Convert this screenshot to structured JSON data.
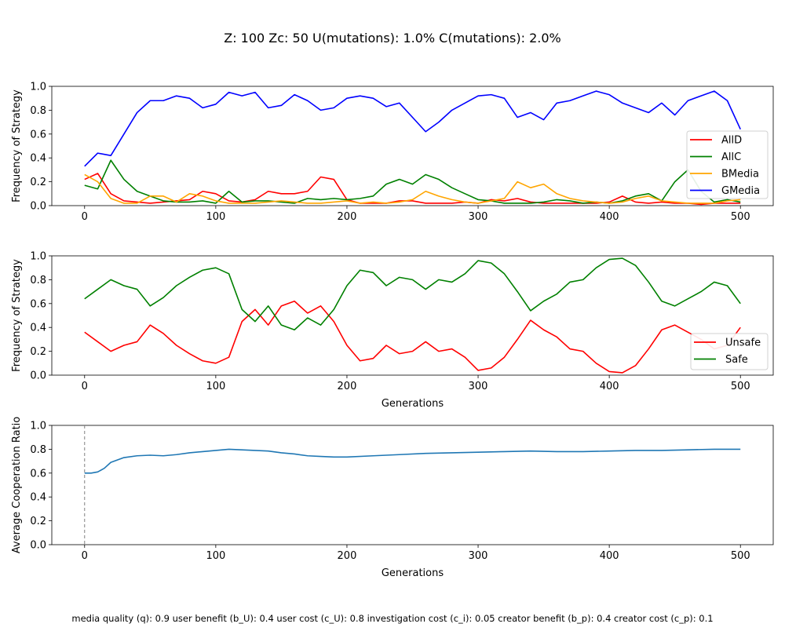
{
  "title": "Z: 100  Zc: 50  U(mutations): 1.0%  C(mutations): 2.0%",
  "footer": "media quality (q): 0.9  user benefit (b_U): 0.4  user cost (c_U): 0.8  investigation cost (c_i): 0.05  creator benefit (b_p): 0.4  creator cost (c_p): 0.1",
  "chart_data": [
    {
      "type": "line",
      "ylabel": "Frequency of Strategy",
      "xlabel": "",
      "xlim": [
        -25,
        525
      ],
      "ylim": [
        0,
        1
      ],
      "x_ticks": [
        0,
        100,
        200,
        300,
        400,
        500
      ],
      "y_ticks": [
        0.0,
        0.2,
        0.4,
        0.6,
        0.8,
        1.0
      ],
      "legend_position": "center-right",
      "x": [
        0,
        10,
        20,
        30,
        40,
        50,
        60,
        70,
        80,
        90,
        100,
        110,
        120,
        130,
        140,
        150,
        160,
        170,
        180,
        190,
        200,
        210,
        220,
        230,
        240,
        250,
        260,
        270,
        280,
        290,
        300,
        310,
        320,
        330,
        340,
        350,
        360,
        370,
        380,
        390,
        400,
        410,
        420,
        430,
        440,
        450,
        460,
        470,
        480,
        490,
        500
      ],
      "series": [
        {
          "name": "AllD",
          "color": "#ff0000",
          "values": [
            0.22,
            0.27,
            0.1,
            0.04,
            0.03,
            0.02,
            0.03,
            0.04,
            0.05,
            0.12,
            0.1,
            0.04,
            0.03,
            0.05,
            0.12,
            0.1,
            0.1,
            0.12,
            0.24,
            0.22,
            0.05,
            0.02,
            0.02,
            0.02,
            0.04,
            0.04,
            0.02,
            0.02,
            0.02,
            0.03,
            0.02,
            0.05,
            0.04,
            0.06,
            0.03,
            0.02,
            0.02,
            0.02,
            0.02,
            0.02,
            0.03,
            0.08,
            0.03,
            0.02,
            0.03,
            0.02,
            0.02,
            0.01,
            0.02,
            0.02,
            0.02
          ]
        },
        {
          "name": "AllC",
          "color": "#008000",
          "values": [
            0.17,
            0.14,
            0.38,
            0.22,
            0.12,
            0.08,
            0.04,
            0.03,
            0.03,
            0.04,
            0.02,
            0.12,
            0.03,
            0.04,
            0.04,
            0.03,
            0.02,
            0.06,
            0.05,
            0.06,
            0.05,
            0.06,
            0.08,
            0.18,
            0.22,
            0.18,
            0.26,
            0.22,
            0.15,
            0.1,
            0.05,
            0.04,
            0.02,
            0.02,
            0.02,
            0.03,
            0.05,
            0.04,
            0.02,
            0.03,
            0.02,
            0.04,
            0.08,
            0.1,
            0.04,
            0.2,
            0.3,
            0.12,
            0.03,
            0.05,
            0.03
          ]
        },
        {
          "name": "BMedia",
          "color": "#ffa500",
          "values": [
            0.26,
            0.2,
            0.06,
            0.02,
            0.02,
            0.08,
            0.08,
            0.03,
            0.1,
            0.08,
            0.04,
            0.02,
            0.02,
            0.02,
            0.03,
            0.04,
            0.03,
            0.02,
            0.02,
            0.03,
            0.04,
            0.02,
            0.03,
            0.02,
            0.03,
            0.05,
            0.12,
            0.08,
            0.05,
            0.03,
            0.02,
            0.04,
            0.06,
            0.2,
            0.15,
            0.18,
            0.1,
            0.06,
            0.04,
            0.03,
            0.02,
            0.03,
            0.06,
            0.08,
            0.04,
            0.03,
            0.02,
            0.02,
            0.02,
            0.04,
            0.05
          ]
        },
        {
          "name": "GMedia",
          "color": "#0000ff",
          "values": [
            0.33,
            0.44,
            0.42,
            0.6,
            0.78,
            0.88,
            0.88,
            0.92,
            0.9,
            0.82,
            0.85,
            0.95,
            0.92,
            0.95,
            0.82,
            0.84,
            0.93,
            0.88,
            0.8,
            0.82,
            0.9,
            0.92,
            0.9,
            0.83,
            0.86,
            0.74,
            0.62,
            0.7,
            0.8,
            0.86,
            0.92,
            0.93,
            0.9,
            0.74,
            0.78,
            0.72,
            0.86,
            0.88,
            0.92,
            0.96,
            0.93,
            0.86,
            0.82,
            0.78,
            0.86,
            0.76,
            0.88,
            0.92,
            0.96,
            0.88,
            0.64
          ]
        }
      ]
    },
    {
      "type": "line",
      "ylabel": "Frequency of Strategy",
      "xlabel": "Generations",
      "xlim": [
        -25,
        525
      ],
      "ylim": [
        0,
        1
      ],
      "x_ticks": [
        0,
        100,
        200,
        300,
        400,
        500
      ],
      "y_ticks": [
        0.0,
        0.2,
        0.4,
        0.6,
        0.8,
        1.0
      ],
      "legend_position": "lower-right",
      "x": [
        0,
        10,
        20,
        30,
        40,
        50,
        60,
        70,
        80,
        90,
        100,
        110,
        120,
        130,
        140,
        150,
        160,
        170,
        180,
        190,
        200,
        210,
        220,
        230,
        240,
        250,
        260,
        270,
        280,
        290,
        300,
        310,
        320,
        330,
        340,
        350,
        360,
        370,
        380,
        390,
        400,
        410,
        420,
        430,
        440,
        450,
        460,
        470,
        480,
        490,
        500
      ],
      "series": [
        {
          "name": "Unsafe",
          "color": "#ff0000",
          "values": [
            0.36,
            0.28,
            0.2,
            0.25,
            0.28,
            0.42,
            0.35,
            0.25,
            0.18,
            0.12,
            0.1,
            0.15,
            0.45,
            0.55,
            0.42,
            0.58,
            0.62,
            0.52,
            0.58,
            0.45,
            0.25,
            0.12,
            0.14,
            0.25,
            0.18,
            0.2,
            0.28,
            0.2,
            0.22,
            0.15,
            0.04,
            0.06,
            0.15,
            0.3,
            0.46,
            0.38,
            0.32,
            0.22,
            0.2,
            0.1,
            0.03,
            0.02,
            0.08,
            0.22,
            0.38,
            0.42,
            0.36,
            0.3,
            0.22,
            0.25,
            0.4
          ]
        },
        {
          "name": "Safe",
          "color": "#008000",
          "values": [
            0.64,
            0.72,
            0.8,
            0.75,
            0.72,
            0.58,
            0.65,
            0.75,
            0.82,
            0.88,
            0.9,
            0.85,
            0.55,
            0.45,
            0.58,
            0.42,
            0.38,
            0.48,
            0.42,
            0.55,
            0.75,
            0.88,
            0.86,
            0.75,
            0.82,
            0.8,
            0.72,
            0.8,
            0.78,
            0.85,
            0.96,
            0.94,
            0.85,
            0.7,
            0.54,
            0.62,
            0.68,
            0.78,
            0.8,
            0.9,
            0.97,
            0.98,
            0.92,
            0.78,
            0.62,
            0.58,
            0.64,
            0.7,
            0.78,
            0.75,
            0.6
          ]
        }
      ]
    },
    {
      "type": "line",
      "ylabel": "Average Cooperation Ratio",
      "xlabel": "Generations",
      "xlim": [
        -25,
        525
      ],
      "ylim": [
        0,
        1
      ],
      "x_ticks": [
        0,
        100,
        200,
        300,
        400,
        500
      ],
      "y_ticks": [
        0.0,
        0.2,
        0.4,
        0.6,
        0.8,
        1.0
      ],
      "vline_x": 0,
      "x": [
        0,
        5,
        10,
        15,
        20,
        30,
        40,
        50,
        60,
        70,
        80,
        90,
        100,
        110,
        120,
        130,
        140,
        150,
        160,
        170,
        180,
        190,
        200,
        220,
        240,
        260,
        280,
        300,
        320,
        340,
        360,
        380,
        400,
        420,
        440,
        460,
        480,
        500
      ],
      "series": [
        {
          "name": "",
          "color": "#1f77b4",
          "values": [
            0.6,
            0.6,
            0.61,
            0.64,
            0.69,
            0.73,
            0.745,
            0.75,
            0.745,
            0.755,
            0.77,
            0.78,
            0.79,
            0.8,
            0.795,
            0.79,
            0.785,
            0.77,
            0.76,
            0.745,
            0.74,
            0.735,
            0.735,
            0.745,
            0.755,
            0.765,
            0.77,
            0.775,
            0.78,
            0.785,
            0.78,
            0.78,
            0.785,
            0.79,
            0.79,
            0.795,
            0.8,
            0.8
          ]
        }
      ]
    }
  ]
}
